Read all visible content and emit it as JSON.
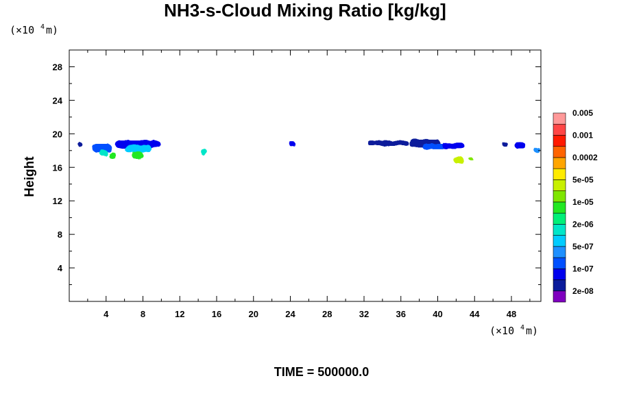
{
  "chart_data": {
    "type": "heatmap",
    "title": "NH3-s-Cloud Mixing Ratio [kg/kg]",
    "ylabel": "Height",
    "xlabel": "",
    "x_unit": {
      "prefix": "(×10",
      "exp": "4",
      "suffix": " m)"
    },
    "y_unit": {
      "prefix": "(×10",
      "exp": "4",
      "suffix": " m)"
    },
    "xlim": [
      0,
      51.2
    ],
    "ylim": [
      0,
      30
    ],
    "x_ticks": [
      4,
      8,
      12,
      16,
      20,
      24,
      28,
      32,
      36,
      40,
      44,
      48
    ],
    "x_tick_labels": [
      "4",
      "8",
      "12",
      "16",
      "20",
      "24",
      "28",
      "32",
      "36",
      "40",
      "44",
      "48"
    ],
    "y_ticks": [
      4,
      8,
      12,
      16,
      20,
      24,
      28
    ],
    "y_tick_labels": [
      "4",
      "8",
      "12",
      "16",
      "20",
      "24",
      "28"
    ],
    "colorbar": {
      "colors": [
        "#7f00bf",
        "#0b1b9b",
        "#0000ee",
        "#0050ff",
        "#1e90ff",
        "#00ccff",
        "#00e6c8",
        "#00f078",
        "#22e822",
        "#7fe600",
        "#c8f000",
        "#ffeb00",
        "#ffa500",
        "#ff6400",
        "#ff1a00",
        "#ff4646",
        "#ff9999"
      ],
      "labels": [
        "2e-08",
        "1e-07",
        "5e-07",
        "2e-06",
        "1e-05",
        "5e-05",
        "0.0002",
        "0.001",
        "0.005"
      ]
    },
    "cloud_patches": [
      {
        "x": [
          0.9,
          1.4
        ],
        "y": [
          18.5,
          19.0
        ],
        "level": 1
      },
      {
        "x": [
          2.5,
          4.6
        ],
        "y": [
          17.8,
          18.8
        ],
        "level": 3
      },
      {
        "x": [
          3.3,
          4.2
        ],
        "y": [
          17.4,
          18.0
        ],
        "level": 6
      },
      {
        "x": [
          4.3,
          5.1
        ],
        "y": [
          17.0,
          17.8
        ],
        "level": 8
      },
      {
        "x": [
          5.0,
          9.9
        ],
        "y": [
          18.3,
          19.2
        ],
        "level": 2
      },
      {
        "x": [
          6.0,
          8.9
        ],
        "y": [
          17.8,
          18.7
        ],
        "level": 5
      },
      {
        "x": [
          6.8,
          8.0
        ],
        "y": [
          17.0,
          17.9
        ],
        "level": 8
      },
      {
        "x": [
          14.3,
          14.9
        ],
        "y": [
          17.4,
          18.3
        ],
        "level": 6
      },
      {
        "x": [
          23.9,
          24.6
        ],
        "y": [
          18.5,
          19.0
        ],
        "level": 2
      },
      {
        "x": [
          32.4,
          36.8
        ],
        "y": [
          18.6,
          19.2
        ],
        "level": 1
      },
      {
        "x": [
          36.9,
          40.3
        ],
        "y": [
          18.4,
          19.3
        ],
        "level": 1
      },
      {
        "x": [
          38.3,
          40.8
        ],
        "y": [
          18.2,
          18.8
        ],
        "level": 3
      },
      {
        "x": [
          40.5,
          42.9
        ],
        "y": [
          18.2,
          18.9
        ],
        "level": 2
      },
      {
        "x": [
          41.7,
          42.8
        ],
        "y": [
          16.5,
          17.3
        ],
        "level": 10
      },
      {
        "x": [
          43.4,
          43.8
        ],
        "y": [
          16.8,
          17.2
        ],
        "level": 9
      },
      {
        "x": [
          47.0,
          47.6
        ],
        "y": [
          18.5,
          19.0
        ],
        "level": 1
      },
      {
        "x": [
          48.3,
          49.5
        ],
        "y": [
          18.3,
          19.0
        ],
        "level": 2
      },
      {
        "x": [
          50.4,
          51.1
        ],
        "y": [
          17.8,
          18.4
        ],
        "level": 4
      }
    ]
  },
  "footer": {
    "time_label": "TIME = 500000.0"
  }
}
